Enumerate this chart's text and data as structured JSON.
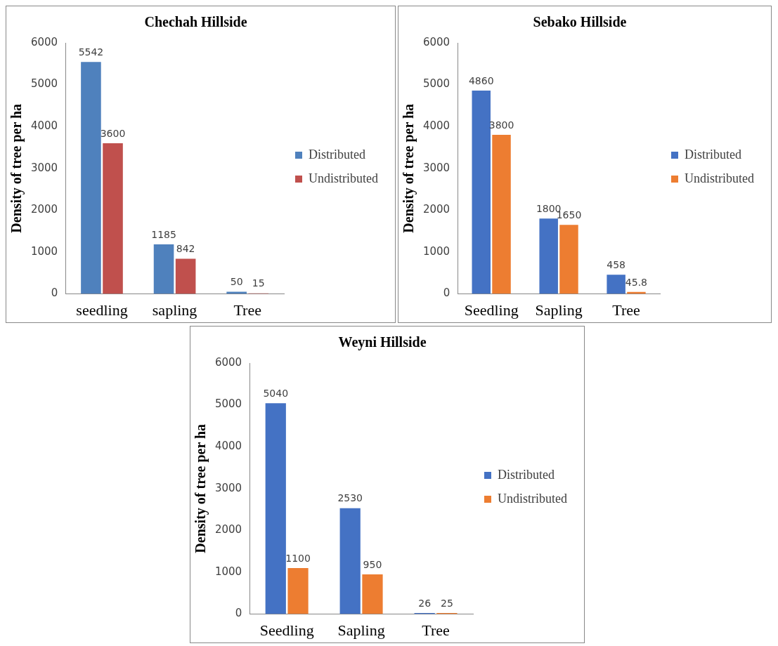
{
  "chart_data": [
    {
      "type": "bar",
      "title": "Chechah Hillside",
      "ylabel": "Density of tree per ha",
      "categories": [
        "seedling",
        "sapling",
        "Tree"
      ],
      "series": [
        {
          "name": "Distributed",
          "color": "#4f81bd",
          "values": [
            5542,
            1185,
            50
          ]
        },
        {
          "name": "Undistributed",
          "color": "#c0504d",
          "values": [
            3600,
            842,
            15
          ]
        }
      ],
      "ylim": [
        0,
        6000
      ],
      "yticks": [
        0,
        1000,
        2000,
        3000,
        4000,
        5000,
        6000
      ],
      "grid": false,
      "legend": "right",
      "data_labels": true
    },
    {
      "type": "bar",
      "title": "Sebako Hillside",
      "ylabel": "Density of tree per ha",
      "categories": [
        "Seedling",
        "Sapling",
        "Tree"
      ],
      "series": [
        {
          "name": "Distributed",
          "color": "#4472c4",
          "values": [
            4860,
            1800,
            458
          ]
        },
        {
          "name": "Undistributed",
          "color": "#ed7d31",
          "values": [
            3800,
            1650,
            45.8
          ]
        }
      ],
      "ylim": [
        0,
        6000
      ],
      "yticks": [
        0,
        1000,
        2000,
        3000,
        4000,
        5000,
        6000
      ],
      "grid": false,
      "legend": "right",
      "data_labels": true
    },
    {
      "type": "bar",
      "title": "Weyni Hillside",
      "ylabel": "Density of tree per ha",
      "categories": [
        "Seedling",
        "Sapling",
        "Tree"
      ],
      "series": [
        {
          "name": "Distributed",
          "color": "#4472c4",
          "values": [
            5040,
            2530,
            26
          ]
        },
        {
          "name": "Undistributed",
          "color": "#ed7d31",
          "values": [
            1100,
            950,
            25
          ]
        }
      ],
      "ylim": [
        0,
        6000
      ],
      "yticks": [
        0,
        1000,
        2000,
        3000,
        4000,
        5000,
        6000
      ],
      "grid": false,
      "legend": "right",
      "data_labels": true
    }
  ]
}
